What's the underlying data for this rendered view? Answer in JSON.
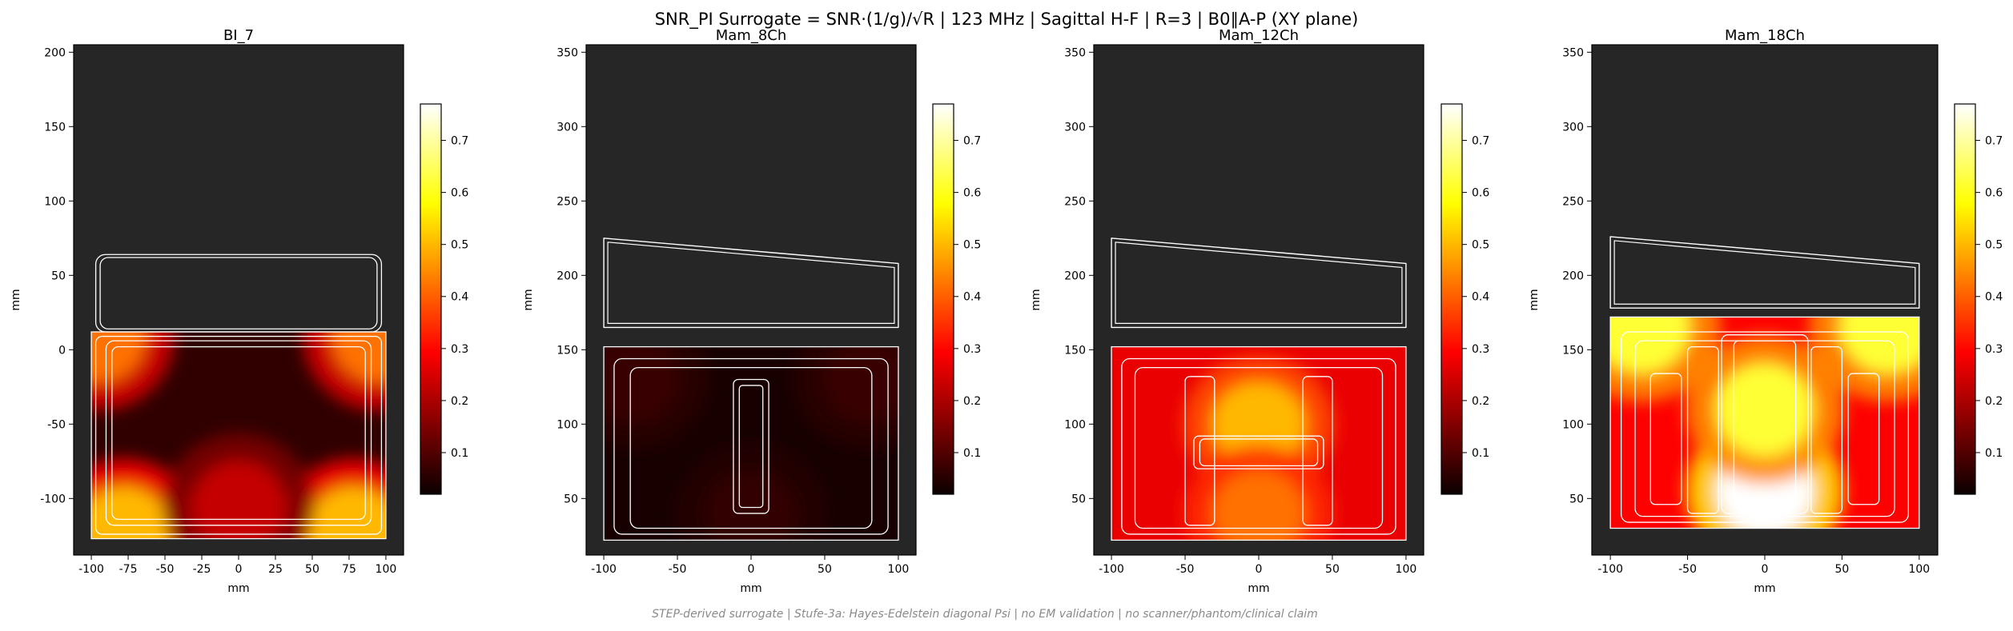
{
  "figure": {
    "suptitle": "SNR_PI Surrogate = SNR·(1/g)/√R | 123 MHz | Sagittal H-F | R=3 | B0∥A-P (XY plane)",
    "footer": "STEP-derived surrogate | Stufe-3a: Hayes-Edelstein diagonal Psi | no EM validation | no scanner/phantom/clinical claim",
    "colormap": "hot",
    "background_color": "#262626",
    "coil_outline_color": "#ffffff"
  },
  "chart_data": [
    {
      "type": "heatmap",
      "title": "BI_7",
      "xlabel": "mm",
      "ylabel": "mm",
      "xlim": [
        -112,
        112
      ],
      "ylim": [
        -138,
        205
      ],
      "xticks": [
        -100,
        -75,
        -50,
        -25,
        0,
        25,
        50,
        75,
        100
      ],
      "yticks": [
        -100,
        -50,
        0,
        50,
        100,
        150,
        200
      ],
      "field_extent": {
        "x": [
          -100,
          100
        ],
        "y": [
          -127,
          12
        ]
      },
      "hotspots": [
        {
          "x": -95,
          "y": 8,
          "value": 0.42
        },
        {
          "x": 95,
          "y": 8,
          "value": 0.42
        },
        {
          "x": -78,
          "y": -122,
          "value": 0.5
        },
        {
          "x": 78,
          "y": -122,
          "value": 0.5
        },
        {
          "x": 0,
          "y": -105,
          "value": 0.22
        }
      ],
      "base_value": 0.06,
      "colorbar": {
        "ticks": [
          0.1,
          0.2,
          0.3,
          0.4,
          0.5,
          0.6,
          0.7
        ],
        "range": [
          0.02,
          0.77
        ]
      },
      "grid": false
    },
    {
      "type": "heatmap",
      "title": "Mam_8Ch",
      "xlabel": "mm",
      "ylabel": "mm",
      "xlim": [
        -112,
        112
      ],
      "ylim": [
        12,
        355
      ],
      "xticks": [
        -100,
        -50,
        0,
        50,
        100
      ],
      "yticks": [
        50,
        100,
        150,
        200,
        250,
        300,
        350
      ],
      "field_extent": {
        "x": [
          -100,
          100
        ],
        "y": [
          22,
          152
        ]
      },
      "hotspots": [
        {
          "x": -80,
          "y": 130,
          "value": 0.07
        },
        {
          "x": 80,
          "y": 130,
          "value": 0.07
        },
        {
          "x": 0,
          "y": 40,
          "value": 0.06
        }
      ],
      "base_value": 0.035,
      "colorbar": {
        "ticks": [
          0.1,
          0.2,
          0.3,
          0.4,
          0.5,
          0.6,
          0.7
        ],
        "range": [
          0.02,
          0.77
        ]
      },
      "grid": false
    },
    {
      "type": "heatmap",
      "title": "Mam_12Ch",
      "xlabel": "mm",
      "ylabel": "mm",
      "xlim": [
        -112,
        112
      ],
      "ylim": [
        12,
        355
      ],
      "xticks": [
        -100,
        -50,
        0,
        50,
        100
      ],
      "yticks": [
        50,
        100,
        150,
        200,
        250,
        300,
        350
      ],
      "field_extent": {
        "x": [
          -100,
          100
        ],
        "y": [
          22,
          152
        ]
      },
      "hotspots": [
        {
          "x": 0,
          "y": 100,
          "value": 0.5
        },
        {
          "x": 0,
          "y": 40,
          "value": 0.42
        }
      ],
      "base_value": 0.26,
      "colorbar": {
        "ticks": [
          0.1,
          0.2,
          0.3,
          0.4,
          0.5,
          0.6,
          0.7
        ],
        "range": [
          0.02,
          0.77
        ]
      },
      "grid": false
    },
    {
      "type": "heatmap",
      "title": "Mam_18Ch",
      "xlabel": "mm",
      "ylabel": "mm",
      "xlim": [
        -112,
        112
      ],
      "ylim": [
        12,
        355
      ],
      "xticks": [
        -100,
        -50,
        0,
        50,
        100
      ],
      "yticks": [
        50,
        100,
        150,
        200,
        250,
        300,
        350
      ],
      "field_extent": {
        "x": [
          -100,
          100
        ],
        "y": [
          30,
          172
        ]
      },
      "hotspots": [
        {
          "x": 0,
          "y": 55,
          "value": 0.8
        },
        {
          "x": 0,
          "y": 110,
          "value": 0.62
        },
        {
          "x": -80,
          "y": 165,
          "value": 0.62
        },
        {
          "x": 80,
          "y": 165,
          "value": 0.62
        }
      ],
      "base_value": 0.28,
      "colorbar": {
        "ticks": [
          0.1,
          0.2,
          0.3,
          0.4,
          0.5,
          0.6,
          0.7
        ],
        "range": [
          0.02,
          0.77
        ]
      },
      "grid": false
    }
  ]
}
